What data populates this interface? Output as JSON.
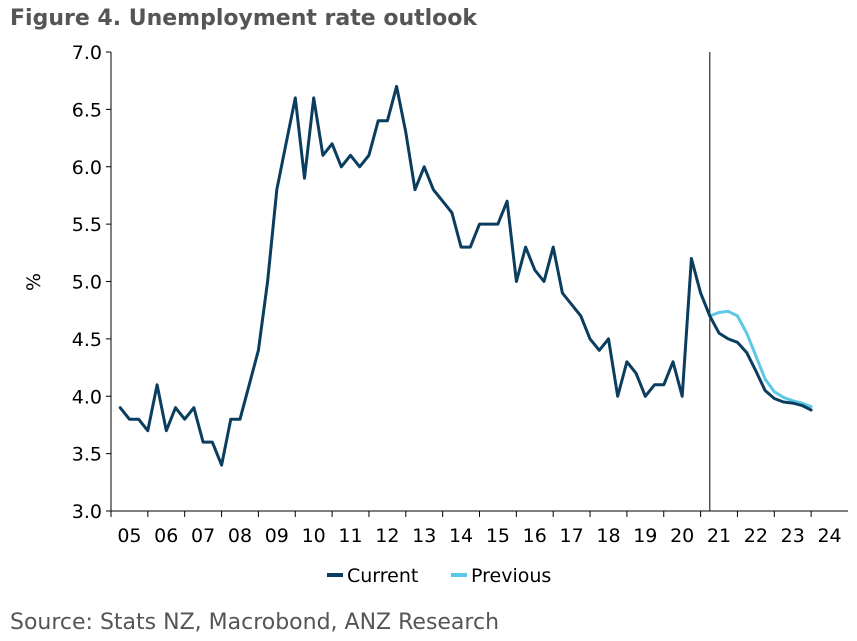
{
  "figure": {
    "title": "Figure 4. Unemployment rate outlook",
    "source": "Source: Stats NZ, Macrobond, ANZ Research"
  },
  "chart_data": {
    "type": "line",
    "ylabel": "%",
    "ylim": [
      3.0,
      7.0
    ],
    "yticks": [
      "3.0",
      "3.5",
      "4.0",
      "4.5",
      "5.0",
      "5.5",
      "6.0",
      "6.5",
      "7.0"
    ],
    "xlim": [
      2004.75,
      2024.75
    ],
    "xticks": [
      "05",
      "06",
      "07",
      "08",
      "09",
      "10",
      "11",
      "12",
      "13",
      "14",
      "15",
      "16",
      "17",
      "18",
      "19",
      "20",
      "21",
      "22",
      "23",
      "24"
    ],
    "forecast_start": "2021 Q1",
    "grid": false,
    "legend_position": "bottom",
    "colors": {
      "current": "#0b3d5e",
      "previous": "#5bc8e6",
      "axis": "#000000"
    },
    "series": [
      {
        "name": "Current",
        "color": "#0b3d5e",
        "x": [
          "2005 Q1",
          "2005 Q2",
          "2005 Q3",
          "2005 Q4",
          "2006 Q1",
          "2006 Q2",
          "2006 Q3",
          "2006 Q4",
          "2007 Q1",
          "2007 Q2",
          "2007 Q3",
          "2007 Q4",
          "2008 Q1",
          "2008 Q2",
          "2008 Q3",
          "2008 Q4",
          "2009 Q1",
          "2009 Q2",
          "2009 Q3",
          "2009 Q4",
          "2010 Q1",
          "2010 Q2",
          "2010 Q3",
          "2010 Q4",
          "2011 Q1",
          "2011 Q2",
          "2011 Q3",
          "2011 Q4",
          "2012 Q1",
          "2012 Q2",
          "2012 Q3",
          "2012 Q4",
          "2013 Q1",
          "2013 Q2",
          "2013 Q3",
          "2013 Q4",
          "2014 Q1",
          "2014 Q2",
          "2014 Q3",
          "2014 Q4",
          "2015 Q1",
          "2015 Q2",
          "2015 Q3",
          "2015 Q4",
          "2016 Q1",
          "2016 Q2",
          "2016 Q3",
          "2016 Q4",
          "2017 Q1",
          "2017 Q2",
          "2017 Q3",
          "2017 Q4",
          "2018 Q1",
          "2018 Q2",
          "2018 Q3",
          "2018 Q4",
          "2019 Q1",
          "2019 Q2",
          "2019 Q3",
          "2019 Q4",
          "2020 Q1",
          "2020 Q2",
          "2020 Q3",
          "2020 Q4",
          "2021 Q1",
          "2021 Q2",
          "2021 Q3",
          "2021 Q4",
          "2022 Q1",
          "2022 Q2",
          "2022 Q3",
          "2022 Q4",
          "2023 Q1",
          "2023 Q2",
          "2023 Q3",
          "2023 Q4"
        ],
        "values": [
          3.9,
          3.8,
          3.8,
          3.7,
          4.1,
          3.7,
          3.9,
          3.8,
          3.9,
          3.6,
          3.6,
          3.4,
          3.8,
          3.8,
          4.1,
          4.4,
          5.0,
          5.8,
          6.2,
          6.6,
          5.9,
          6.6,
          6.1,
          6.2,
          6.0,
          6.1,
          6.0,
          6.1,
          6.4,
          6.4,
          6.7,
          6.3,
          5.8,
          6.0,
          5.8,
          5.7,
          5.6,
          5.3,
          5.3,
          5.5,
          5.5,
          5.5,
          5.7,
          5.0,
          5.3,
          5.1,
          5.0,
          5.3,
          4.9,
          4.8,
          4.7,
          4.5,
          4.4,
          4.5,
          4.0,
          4.3,
          4.2,
          4.0,
          4.1,
          4.1,
          4.3,
          4.0,
          5.2,
          4.9,
          4.7,
          4.55,
          4.5,
          4.47,
          4.38,
          4.22,
          4.05,
          3.98,
          3.95,
          3.94,
          3.92,
          3.88
        ]
      },
      {
        "name": "Previous",
        "color": "#5bc8e6",
        "x": [
          "2020 Q4",
          "2021 Q1",
          "2021 Q2",
          "2021 Q3",
          "2021 Q4",
          "2022 Q1",
          "2022 Q2",
          "2022 Q3",
          "2022 Q4",
          "2023 Q1",
          "2023 Q2",
          "2023 Q3",
          "2023 Q4"
        ],
        "values": [
          4.9,
          4.7,
          4.73,
          4.74,
          4.7,
          4.55,
          4.35,
          4.15,
          4.04,
          3.99,
          3.96,
          3.94,
          3.91
        ]
      }
    ]
  }
}
